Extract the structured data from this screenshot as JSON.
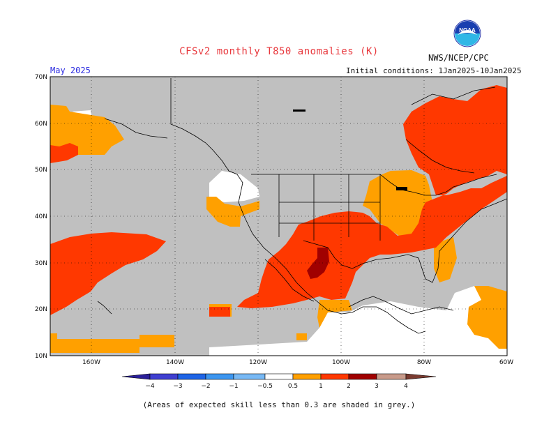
{
  "header": {
    "title": "CFSv2 monthly T850 anomalies (K)",
    "source": "NWS/NCEP/CPC",
    "month": "May 2025",
    "initial_conditions": "Initial conditions: 1Jan2025-10Jan2025",
    "logo_text": "NOAA"
  },
  "map": {
    "lat_labels": [
      "70N",
      "60N",
      "50N",
      "40N",
      "30N",
      "20N",
      "10N"
    ],
    "lon_labels": [
      "160W",
      "140W",
      "120W",
      "100W",
      "80W",
      "60W"
    ],
    "colors": {
      "grey_skill": "#c0c0c0",
      "neutral": "#ffffff",
      "anom_0_5_1": "#ffa000",
      "anom_1_2": "#ff3800",
      "anom_2_3": "#a00000",
      "ocean_land_lines": "#000000"
    }
  },
  "colorbar": {
    "labels": [
      "−4",
      "−3",
      "−2",
      "−1",
      "−0.5",
      "0.5",
      "1",
      "2",
      "3",
      "4"
    ],
    "colors": [
      "#2a1f99",
      "#3f3fd1",
      "#1e64e6",
      "#3c96f0",
      "#78b9f5",
      "#ffffff",
      "#ffa000",
      "#ff3800",
      "#a00000",
      "#c89a8a",
      "#7a3b30"
    ]
  },
  "footnote": "(Areas of expected skill less than 0.3 are shaded in grey.)"
}
